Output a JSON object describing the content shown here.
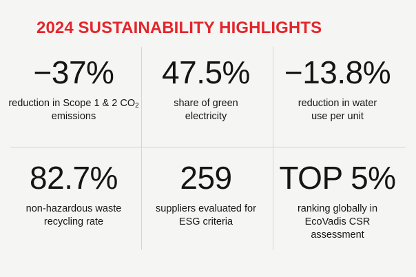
{
  "title": "2024 SUSTAINABILITY HIGHLIGHTS",
  "metrics": [
    {
      "value": "−37%",
      "desc_prefix": "reduction in Scope 1 & 2 CO",
      "desc_sub": "2",
      "desc_suffix": " emissions"
    },
    {
      "value": "47.5%",
      "desc": "share of green electricity"
    },
    {
      "value": "−13.8%",
      "desc": "reduction in water use per unit"
    },
    {
      "value": "82.7%",
      "desc": "non-hazardous waste recycling rate"
    },
    {
      "value": "259",
      "desc": "suppliers evaluated for ESG criteria"
    },
    {
      "value": "TOP 5%",
      "desc": "ranking globally in EcoVadis CSR assessment"
    }
  ],
  "colors": {
    "accent": "#e3262c",
    "background": "#f5f5f3",
    "text": "#151515",
    "divider": "#d4d4d2"
  }
}
